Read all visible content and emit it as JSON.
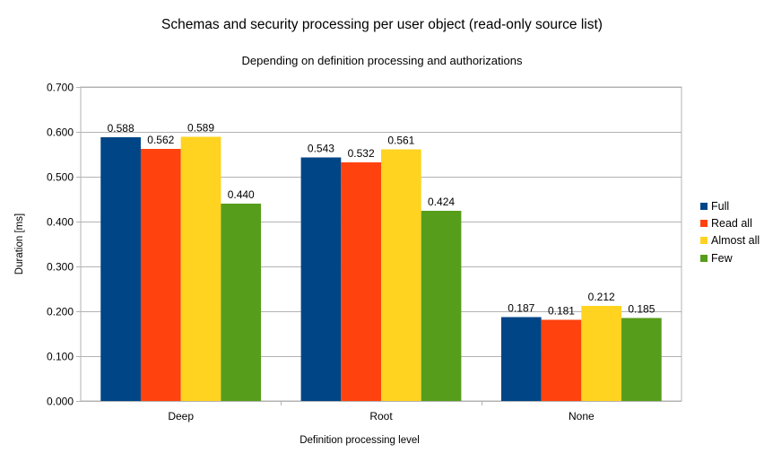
{
  "chart_data": {
    "type": "bar",
    "title": "Schemas and security processing per user object (read-only source list)",
    "subtitle": "Depending on definition processing and authorizations",
    "xlabel": "Definition processing level",
    "ylabel": "Duration [ms]",
    "categories": [
      "Deep",
      "Root",
      "None"
    ],
    "series": [
      {
        "name": "Full",
        "color": "#004586",
        "values": [
          0.588,
          0.543,
          0.187
        ]
      },
      {
        "name": "Read all",
        "color": "#ff420e",
        "values": [
          0.562,
          0.532,
          0.181
        ]
      },
      {
        "name": "Almost all",
        "color": "#ffd320",
        "values": [
          0.589,
          0.561,
          0.212
        ]
      },
      {
        "name": "Few",
        "color": "#579d1c",
        "values": [
          0.44,
          0.424,
          0.185
        ]
      }
    ],
    "ylim": [
      0,
      0.7
    ],
    "yticks": [
      "0.000",
      "0.100",
      "0.200",
      "0.300",
      "0.400",
      "0.500",
      "0.600",
      "0.700"
    ],
    "grid": true,
    "data_labels": true,
    "legend_position": "right"
  }
}
